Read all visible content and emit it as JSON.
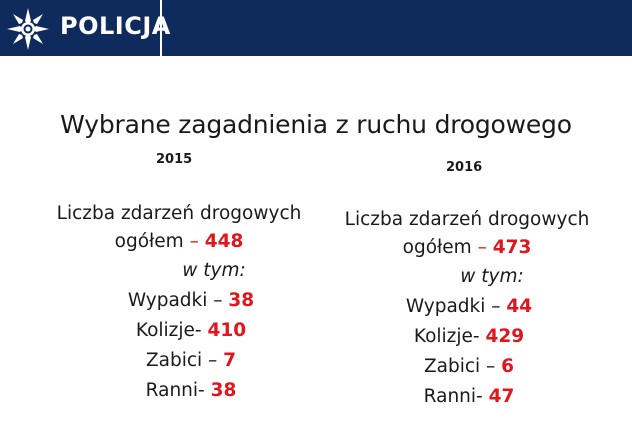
{
  "header": {
    "logo_icon": "police-star-icon",
    "brand_text": "POLICJA",
    "bg_color": "#0f2a5c"
  },
  "slide": {
    "title": "Wybrane zagadnienia z ruchu drogowego",
    "accent_color": "#e0161d",
    "columns": [
      {
        "year": "2015",
        "total_line1": "Liczba zdarzeń drogowych",
        "total_line2_label": "ogółem",
        "total_dash": " – ",
        "total_value": "448",
        "w_tym": "w tym:",
        "stats": [
          {
            "label": "Wypadki – ",
            "value": "38"
          },
          {
            "label": "Kolizje- ",
            "value": "410"
          },
          {
            "label": "Zabici – ",
            "value": "7"
          },
          {
            "label": "Ranni- ",
            "value": "38"
          }
        ]
      },
      {
        "year": "2016",
        "total_line1": "Liczba zdarzeń drogowych",
        "total_line2_label": "ogółem",
        "total_dash": " – ",
        "total_value": "473",
        "w_tym": "w tym:",
        "stats": [
          {
            "label": "Wypadki – ",
            "value": "44"
          },
          {
            "label": "Kolizje- ",
            "value": "429"
          },
          {
            "label": "Zabici – ",
            "value": "6"
          },
          {
            "label": "Ranni- ",
            "value": "47"
          }
        ]
      }
    ]
  }
}
